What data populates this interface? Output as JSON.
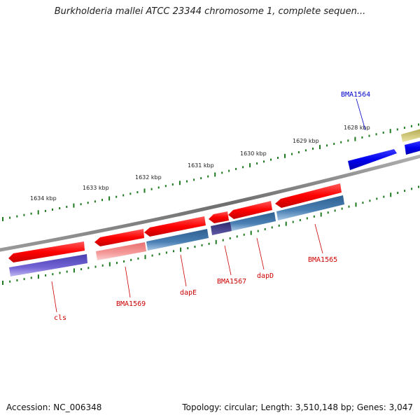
{
  "header": {
    "title": "Burkholderia mallei ATCC 23344 chromosome 1, complete sequen..."
  },
  "footer": {
    "accession": "Accession: NC_006348",
    "summary": "Topology: circular; Length: 3,510,148 bp; Genes: 3,047"
  },
  "colors": {
    "backbone": "#8a8a8a",
    "tick": "#1e7a1e",
    "forward_gene": "#0000e0",
    "reverse_gene": "#e00000",
    "forward_label": "#0000cc",
    "reverse_label": "#cc0000",
    "cds_steel": "#4a7fb0",
    "cds_indigo": "#6a5acd",
    "cds_salmon": "#f08a8a",
    "cds_navy": "#3c3a80",
    "cds_khaki": "#e0d890"
  },
  "scale": {
    "labels": [
      "1628 kbp",
      "1629 kbp",
      "1630 kbp",
      "1631 kbp",
      "1632 kbp",
      "1633 kbp",
      "1634 kbp"
    ]
  },
  "genes": {
    "forward": [
      "BMA1564"
    ],
    "reverse": [
      "BMA1565",
      "dapD",
      "BMA1567",
      "dapE",
      "BMA1569",
      "cls"
    ]
  }
}
